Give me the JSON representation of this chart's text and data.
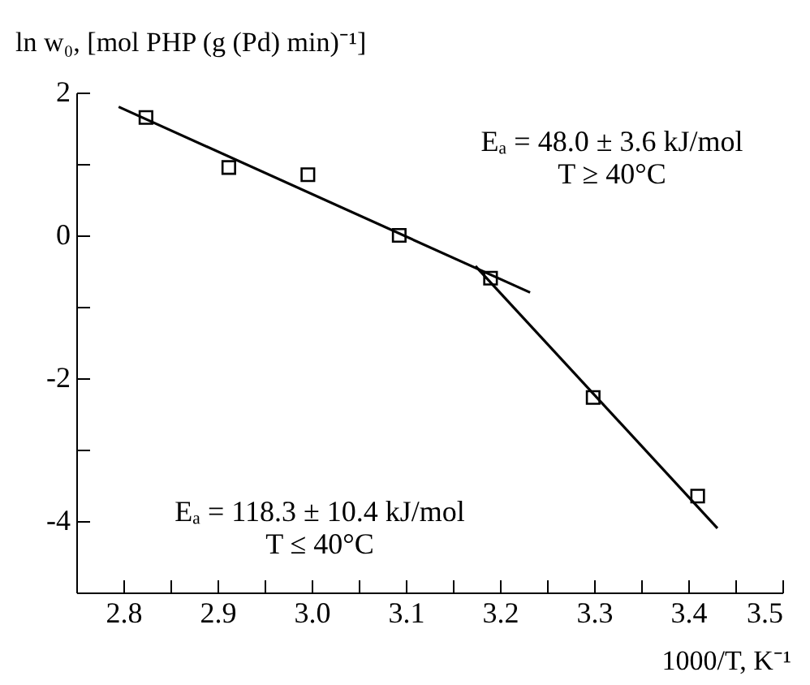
{
  "chart_data": {
    "type": "scatter",
    "xlabel": "1000/T, K⁻¹",
    "ylabel": "ln w₀, [mol PHP (g (Pd) min)⁻¹]",
    "x": [
      2.824,
      2.912,
      2.996,
      3.093,
      3.19,
      3.299,
      3.41
    ],
    "series": [
      {
        "color": "#000000",
        "marker": "square",
        "values": [
          1.65,
          0.95,
          0.85,
          0.0,
          -0.6,
          -2.27,
          -3.65
        ]
      },
      {
        "type": "line",
        "color": "#000000",
        "marker": "none",
        "x": [
          2.795,
          3.232
        ],
        "values": [
          1.8,
          -0.8
        ]
      },
      {
        "type": "line",
        "color": "#000000",
        "marker": "none",
        "x": [
          3.174,
          3.431
        ],
        "values": [
          -0.43,
          -4.1
        ]
      }
    ],
    "xlim": [
      2.75,
      3.5
    ],
    "ylim": [
      -5,
      2
    ],
    "xticks": [
      2.8,
      {
        "value": 2.85,
        "label": null
      },
      2.9,
      {
        "value": 2.95,
        "label": null
      },
      {
        "value": 3,
        "label": "3.0"
      },
      {
        "value": 3.05,
        "label": null
      },
      3.1,
      {
        "value": 3.15,
        "label": null
      },
      3.2,
      {
        "value": 3.25,
        "label": null
      },
      3.3,
      {
        "value": 3.35,
        "label": null
      },
      3.4,
      {
        "value": 3.45,
        "label": null
      },
      3.5
    ],
    "yticks": [
      2,
      {
        "value": 1,
        "label": null
      },
      0,
      {
        "value": -1,
        "label": null
      },
      -2,
      {
        "value": -3,
        "label": null
      },
      -4
    ],
    "grid": false,
    "annotations": [
      "Eₐ = 48.0 ± 3.6 kJ/mol\nT ≥ 40°C",
      "Eₐ = 118.3 ± 10.4 kJ/mol\nT ≤ 40°C"
    ]
  }
}
